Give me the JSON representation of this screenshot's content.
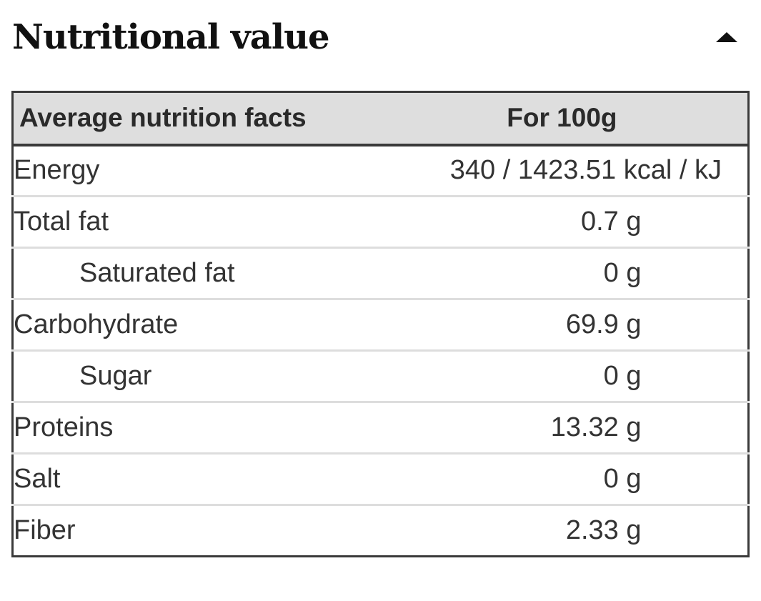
{
  "section": {
    "title": "Nutritional value",
    "toggle_icon": "triangle-up-icon"
  },
  "table": {
    "header": {
      "label": "Average nutrition facts",
      "value": "For 100g"
    },
    "rows": [
      {
        "label": "Energy",
        "value": "340 / 1423.51 kcal / kJ",
        "indent": false
      },
      {
        "label": "Total fat",
        "value": "0.7 g",
        "indent": false
      },
      {
        "label": "Saturated fat",
        "value": "0 g",
        "indent": true
      },
      {
        "label": "Carbohydrate",
        "value": "69.9 g",
        "indent": false
      },
      {
        "label": "Sugar",
        "value": "0 g",
        "indent": true
      },
      {
        "label": "Proteins",
        "value": "13.32 g",
        "indent": false
      },
      {
        "label": "Salt",
        "value": "0 g",
        "indent": false
      },
      {
        "label": "Fiber",
        "value": "2.33 g",
        "indent": false
      }
    ]
  },
  "colors": {
    "header_background": "#dedede",
    "table_border": "#3a3a3a",
    "row_divider": "#dddddd"
  }
}
